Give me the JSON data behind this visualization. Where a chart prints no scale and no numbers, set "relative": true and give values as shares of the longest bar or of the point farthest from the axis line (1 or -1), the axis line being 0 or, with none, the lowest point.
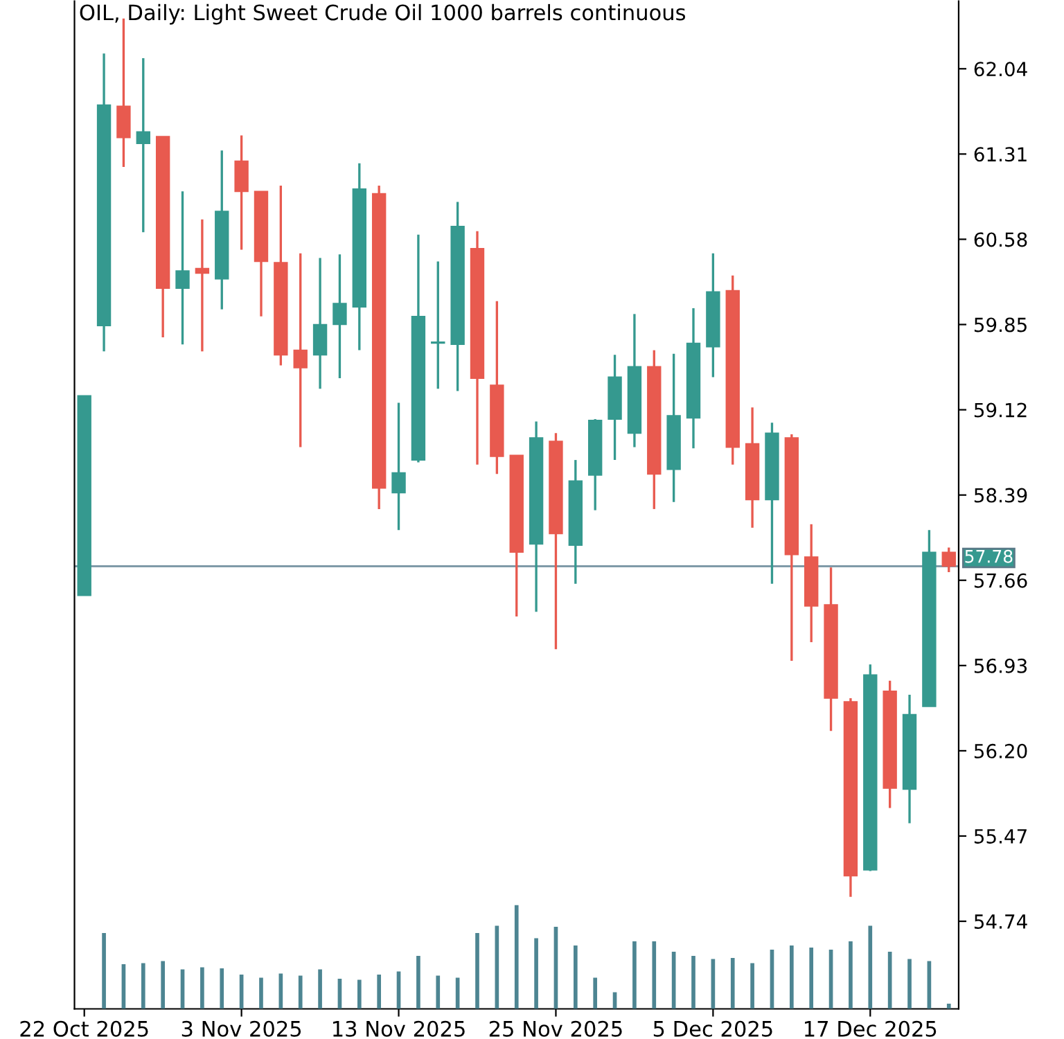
{
  "chart_data": [
    {
      "type": "candlestick",
      "title": "OIL, Daily: Light Sweet Crude Oil 1000 barrels continuous",
      "categories": [
        "22 Oct 2025",
        null,
        null,
        null,
        null,
        null,
        null,
        null,
        "3 Nov 2025",
        null,
        null,
        null,
        null,
        null,
        null,
        null,
        "13 Nov 2025",
        null,
        null,
        null,
        null,
        null,
        null,
        null,
        "25 Nov 2025",
        null,
        null,
        null,
        null,
        null,
        null,
        null,
        "5 Dec 2025",
        null,
        null,
        null,
        null,
        null,
        null,
        null,
        "17 Dec 2025",
        null,
        null,
        null,
        null
      ],
      "ohlc": [
        [
          57.53,
          59.24,
          57.53,
          59.24
        ],
        [
          59.84,
          62.17,
          59.62,
          61.73
        ],
        [
          61.72,
          62.47,
          61.2,
          61.45
        ],
        [
          61.4,
          62.13,
          60.64,
          61.5
        ],
        [
          61.46,
          61.46,
          59.74,
          60.16
        ],
        [
          60.16,
          60.99,
          59.68,
          60.31
        ],
        [
          60.33,
          60.75,
          59.62,
          60.29
        ],
        [
          60.24,
          61.34,
          59.98,
          60.82
        ],
        [
          61.25,
          61.47,
          60.49,
          60.99
        ],
        [
          60.99,
          60.99,
          59.92,
          60.39
        ],
        [
          60.38,
          61.04,
          59.5,
          59.59
        ],
        [
          59.63,
          60.46,
          58.8,
          59.48
        ],
        [
          59.59,
          60.42,
          59.3,
          59.85
        ],
        [
          59.85,
          60.45,
          59.39,
          60.03
        ],
        [
          60.0,
          61.23,
          59.63,
          61.01
        ],
        [
          60.97,
          61.04,
          58.27,
          58.45
        ],
        [
          58.41,
          59.18,
          58.09,
          58.58
        ],
        [
          58.69,
          60.62,
          58.67,
          59.92
        ],
        [
          59.69,
          60.39,
          59.3,
          59.7
        ],
        [
          59.68,
          60.9,
          59.28,
          60.69
        ],
        [
          60.5,
          60.65,
          58.65,
          59.39
        ],
        [
          59.33,
          60.05,
          58.57,
          58.72
        ],
        [
          58.73,
          58.73,
          57.35,
          57.9
        ],
        [
          57.97,
          59.02,
          57.39,
          58.88
        ],
        [
          58.85,
          58.92,
          57.07,
          58.06
        ],
        [
          57.96,
          58.69,
          57.63,
          58.51
        ],
        [
          58.56,
          59.04,
          58.26,
          59.03
        ],
        [
          59.04,
          59.59,
          58.69,
          59.4
        ],
        [
          58.92,
          59.94,
          58.8,
          59.49
        ],
        [
          59.49,
          59.63,
          58.27,
          58.57
        ],
        [
          58.61,
          59.6,
          58.33,
          59.07
        ],
        [
          59.05,
          59.99,
          58.79,
          59.69
        ],
        [
          59.66,
          60.46,
          59.4,
          60.13
        ],
        [
          60.14,
          60.27,
          58.65,
          58.8
        ],
        [
          58.83,
          59.14,
          58.11,
          58.35
        ],
        [
          58.35,
          59.01,
          57.63,
          58.92
        ],
        [
          58.88,
          58.91,
          56.97,
          57.88
        ],
        [
          57.86,
          58.14,
          57.13,
          57.44
        ],
        [
          57.45,
          57.77,
          56.37,
          56.65
        ],
        [
          56.62,
          56.65,
          54.95,
          55.13
        ],
        [
          55.18,
          56.94,
          55.17,
          56.85
        ],
        [
          56.71,
          56.8,
          55.71,
          55.88
        ],
        [
          55.87,
          56.68,
          55.58,
          56.51
        ],
        [
          56.58,
          58.09,
          56.58,
          57.9
        ],
        [
          57.9,
          57.94,
          57.73,
          57.78
        ]
      ],
      "colors": [
        "#35998f",
        "#35998f",
        "#e85a4f",
        "#35998f",
        "#e85a4f",
        "#35998f",
        "#e85a4f",
        "#35998f",
        "#e85a4f",
        "#e85a4f",
        "#e85a4f",
        "#e85a4f",
        "#35998f",
        "#35998f",
        "#35998f",
        "#e85a4f",
        "#35998f",
        "#35998f",
        "#35998f",
        "#35998f",
        "#e85a4f",
        "#e85a4f",
        "#e85a4f",
        "#35998f",
        "#e85a4f",
        "#35998f",
        "#35998f",
        "#35998f",
        "#35998f",
        "#e85a4f",
        "#35998f",
        "#35998f",
        "#35998f",
        "#e85a4f",
        "#e85a4f",
        "#35998f",
        "#e85a4f",
        "#e85a4f",
        "#e85a4f",
        "#e85a4f",
        "#35998f",
        "#e85a4f",
        "#35998f",
        "#35998f",
        "#e85a4f"
      ],
      "ylim": [
        53.99,
        62.62
      ],
      "yticks": [
        62.04,
        61.31,
        60.58,
        59.85,
        59.12,
        58.39,
        57.66,
        56.93,
        {
          "value": 56.2,
          "label": "56.20"
        },
        55.47,
        54.74
      ],
      "ref_lines": [
        {
          "axis": "y",
          "value": 57.78,
          "label": "57.78",
          "color": "#7f9aa8"
        }
      ],
      "grid": false
    },
    {
      "type": "bar",
      "relative": true,
      "color": "#4d8592",
      "categories": [
        null,
        null,
        null,
        null,
        null,
        null,
        null,
        null,
        null,
        null,
        null,
        null,
        null,
        null,
        null,
        null,
        null,
        null,
        null,
        null,
        null,
        null,
        null,
        null,
        null,
        null,
        null,
        null,
        null,
        null,
        null,
        null,
        null,
        null,
        null,
        null,
        null,
        null,
        null,
        null,
        null,
        null,
        null,
        null,
        null
      ],
      "values": [
        null,
        0.73,
        0.43,
        0.44,
        0.46,
        0.38,
        0.4,
        0.39,
        0.33,
        0.3,
        0.34,
        0.32,
        0.38,
        0.29,
        0.28,
        0.33,
        0.36,
        0.51,
        0.32,
        0.3,
        0.73,
        0.8,
        1,
        0.68,
        0.79,
        0.61,
        0.3,
        0.16,
        0.65,
        0.65,
        0.55,
        0.51,
        0.48,
        0.49,
        0.44,
        0.57,
        0.61,
        0.59,
        0.57,
        0.65,
        0.8,
        0.55,
        0.48,
        0.46,
        0.05
      ]
    }
  ]
}
